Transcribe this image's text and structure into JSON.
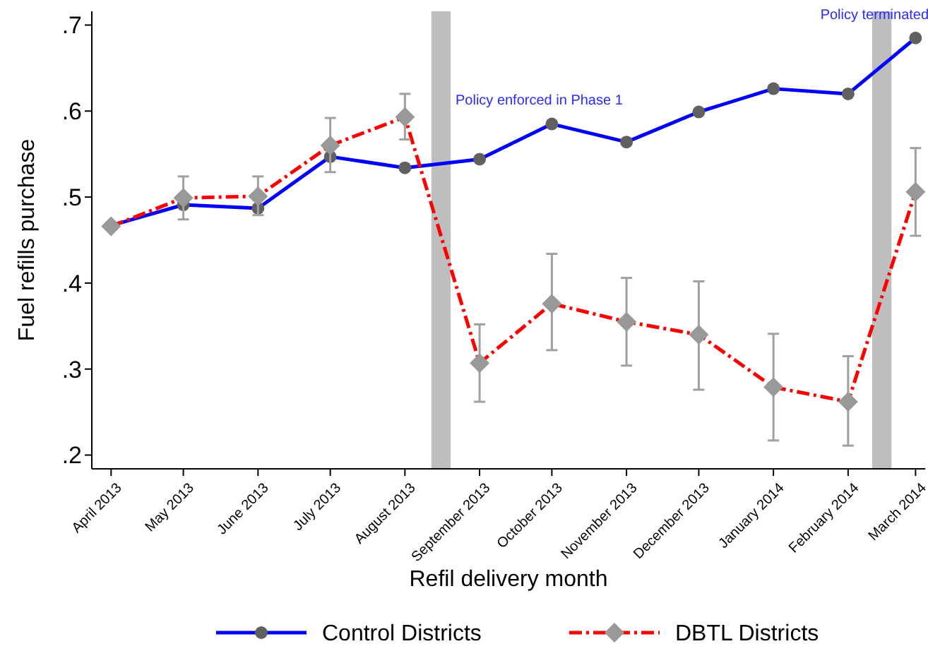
{
  "chart_data": {
    "type": "line",
    "xlabel": "Refil delivery month",
    "ylabel": "Fuel refills purchase",
    "x": [
      "2013-04",
      "2013-05",
      "2013-06",
      "2013-07",
      "2013-08",
      "2013-09",
      "2013-10",
      "2013-11",
      "2013-12",
      "2014-01",
      "2014-02",
      "2014-03"
    ],
    "xlim": [
      "2013-03-24",
      "2014-03-05"
    ],
    "xticks": [
      {
        "value": "2013-04",
        "label": "April 2013"
      },
      {
        "value": "2013-05",
        "label": "May 2013"
      },
      {
        "value": "2013-06",
        "label": "June 2013"
      },
      {
        "value": "2013-07",
        "label": "July 2013"
      },
      {
        "value": "2013-08",
        "label": "August 2013"
      },
      {
        "value": "2013-09",
        "label": "September 2013"
      },
      {
        "value": "2013-10",
        "label": "October 2013"
      },
      {
        "value": "2013-11",
        "label": "November 2013"
      },
      {
        "value": "2013-12",
        "label": "December 2013"
      },
      {
        "value": "2014-01",
        "label": "January 2014"
      },
      {
        "value": "2014-02",
        "label": "February 2014"
      },
      {
        "value": "2014-03",
        "label": "March 2014"
      }
    ],
    "ylim": [
      0.184,
      0.716
    ],
    "yticks": [
      {
        "value": 0.2,
        "label": ".2"
      },
      {
        "value": 0.3,
        "label": ".3"
      },
      {
        "value": 0.4,
        "label": ".4"
      },
      {
        "value": 0.5,
        "label": ".5"
      },
      {
        "value": 0.6,
        "label": ".6"
      },
      {
        "value": 0.7,
        "label": ".7"
      }
    ],
    "series": [
      {
        "name": "Control Districts",
        "color": "#0000ff",
        "marker": "circle",
        "line_style": "solid",
        "values": [
          0.467,
          0.491,
          0.487,
          0.547,
          0.534,
          0.544,
          0.585,
          0.564,
          0.599,
          0.626,
          0.62,
          0.685
        ]
      },
      {
        "name": "DBTL Districts",
        "color": "#ff0000",
        "marker": "diamond",
        "line_style": "dashed",
        "values": [
          0.466,
          0.499,
          0.501,
          0.56,
          0.593,
          0.307,
          0.376,
          0.355,
          0.34,
          0.279,
          0.262,
          0.506
        ],
        "errors": [
          null,
          [
            0.474,
            0.524
          ],
          [
            0.479,
            0.524
          ],
          [
            0.529,
            0.592
          ],
          [
            0.567,
            0.62
          ],
          [
            0.262,
            0.352
          ],
          [
            0.322,
            0.434
          ],
          [
            0.304,
            0.406
          ],
          [
            0.276,
            0.402
          ],
          [
            0.217,
            0.341
          ],
          [
            0.211,
            0.315
          ],
          [
            0.455,
            0.557
          ]
        ]
      }
    ],
    "bands": [
      {
        "axis": "x",
        "from": "2013-08-12",
        "to": "2013-08-20",
        "color": "#bebebe"
      },
      {
        "axis": "x",
        "from": "2014-02-11",
        "to": "2014-02-19",
        "color": "#bebebe"
      }
    ],
    "annotations": [
      {
        "text": "Policy enforced in Phase 1",
        "x": "2013-08-22",
        "y": 0.608
      },
      {
        "text": "Policy terminated",
        "x": "2014-02-12",
        "y": 0.707
      }
    ],
    "grid": false,
    "legend": "bottom"
  }
}
